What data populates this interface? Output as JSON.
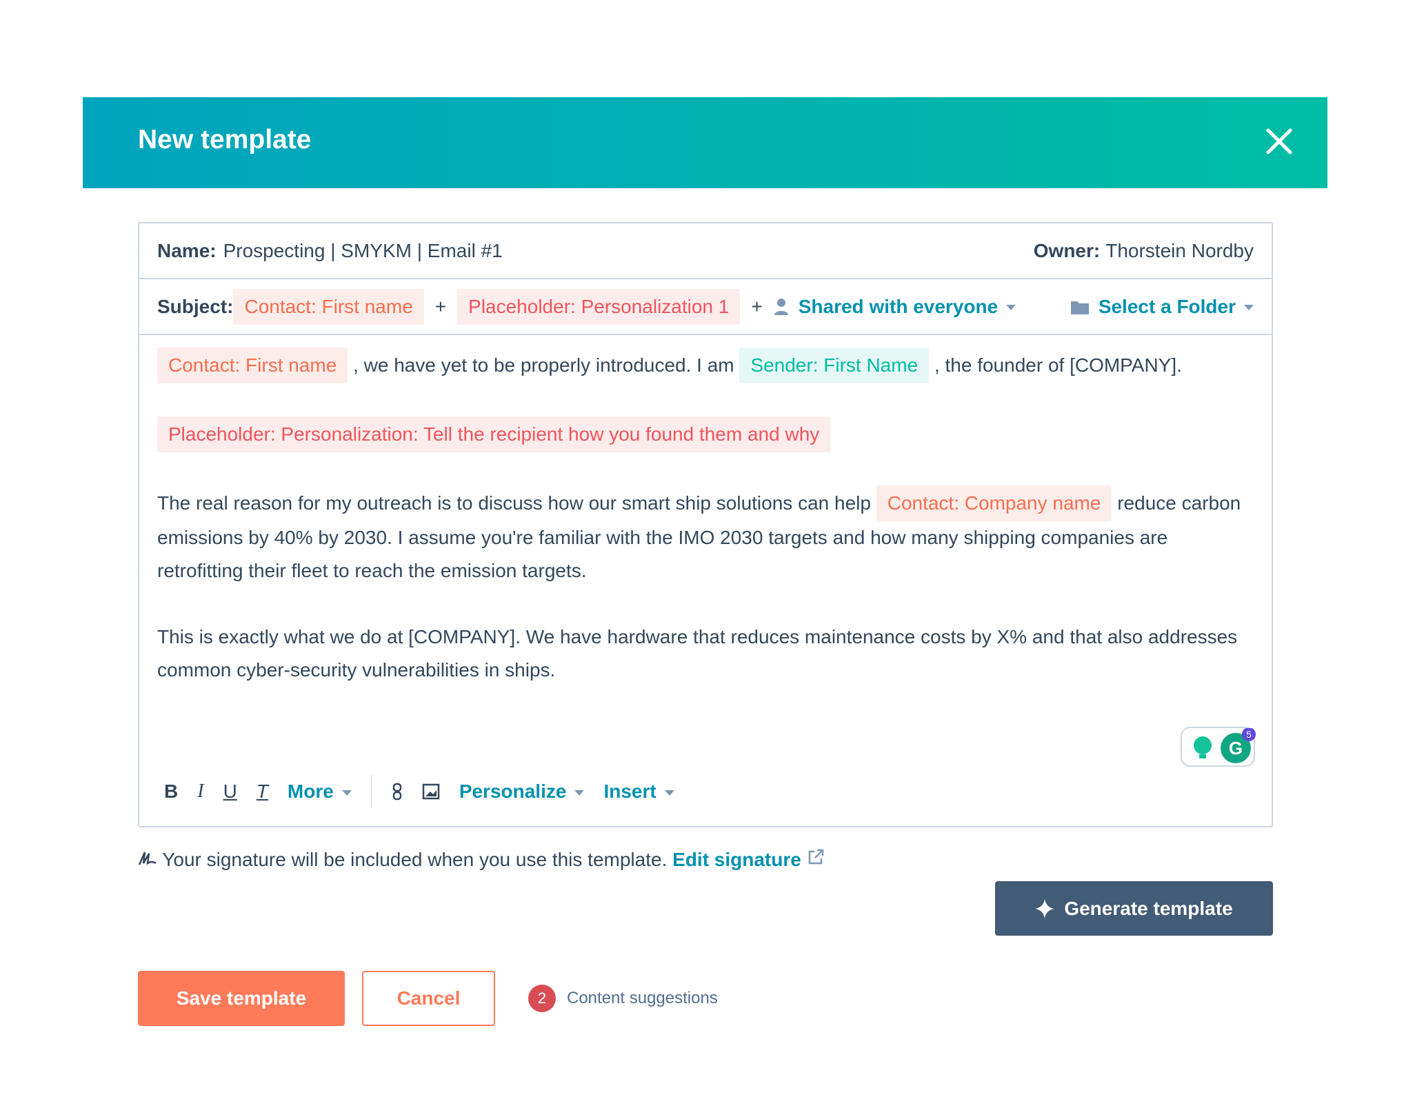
{
  "header": {
    "title": "New template"
  },
  "name_row": {
    "name_label": "Name:",
    "name_value": "Prospecting | SMYKM | Email #1",
    "owner_label": "Owner:",
    "owner_value": "Thorstein Nordby"
  },
  "subject_row": {
    "label": "Subject:",
    "token1": "Contact: First name",
    "plus": "+",
    "token2": "Placeholder: Personalization 1",
    "sharing": "Shared with everyone",
    "folder": "Select a Folder"
  },
  "body": {
    "p1_token1": "Contact: First name",
    "p1_text1": ", we have yet to be properly introduced. I am",
    "p1_token2": "Sender: First Name",
    "p1_text2": ", the founder of [COMPANY].",
    "p2_token": "Placeholder: Personalization: Tell the recipient how you found them and why",
    "p3_text1": "The real reason for my outreach is to discuss how our smart ship solutions can help",
    "p3_token": "Contact: Company name",
    "p3_text2": "reduce carbon emissions by 40% by 2030. I assume you're familiar with the IMO 2030 targets and how many shipping companies are retrofitting their fleet to reach the emission targets.",
    "p4_text": "This is exactly what we do at [COMPANY]. We have hardware that reduces maintenance costs by X% and that also addresses common cyber-security vulnerabilities in ships."
  },
  "toolbar": {
    "bold": "B",
    "italic": "I",
    "underline": "U",
    "clear": "T",
    "more": "More",
    "personalize": "Personalize",
    "insert": "Insert"
  },
  "grammarly": {
    "badge": "5"
  },
  "signature": {
    "text": "Your signature will be included when you use this template.",
    "link": "Edit signature"
  },
  "generate": {
    "label": "Generate template"
  },
  "footer": {
    "save": "Save template",
    "cancel": "Cancel",
    "suggestions_count": "2",
    "suggestions_label": "Content suggestions"
  },
  "colors": {
    "header_start": "#00a4bd",
    "header_end": "#00bda5",
    "primary": "#ff7a59",
    "dark": "#425b76",
    "link": "#0091ae"
  }
}
